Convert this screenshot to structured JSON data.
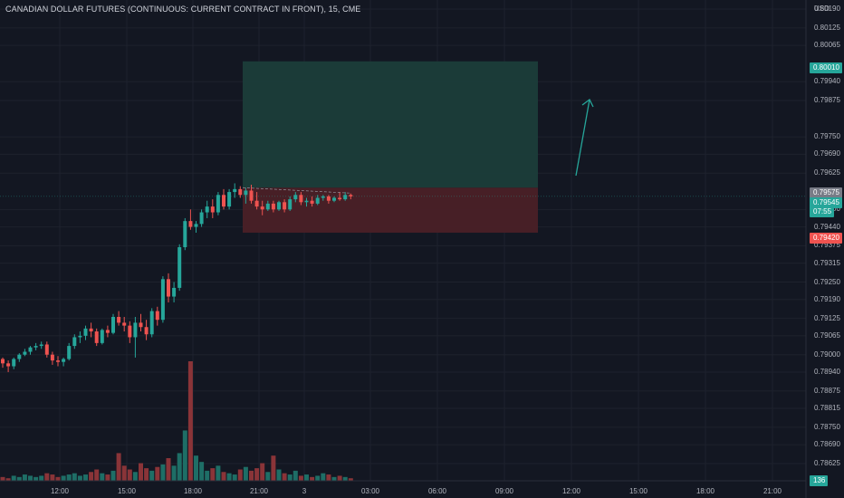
{
  "header": {
    "symbol_title": "CANADIAN DOLLAR FUTURES (CONTINUOUS: CURRENT CONTRACT IN FRONT), 15, CME"
  },
  "price_axis": {
    "currency": "USD",
    "ticks": [
      "0.80190",
      "0.80125",
      "0.80065",
      "0.79940",
      "0.79875",
      "0.79750",
      "0.79690",
      "0.79625",
      "0.79500",
      "0.79440",
      "0.79375",
      "0.79315",
      "0.79250",
      "0.79190",
      "0.79125",
      "0.79065",
      "0.79000",
      "0.78940",
      "0.78875",
      "0.78815",
      "0.78750",
      "0.78690",
      "0.78625"
    ],
    "tags": {
      "take_profit": "0.80010",
      "entry": "0.79575",
      "last_price": "0.79545",
      "countdown": "07:55",
      "stop_loss": "0.79420",
      "volume": "136"
    }
  },
  "time_axis": {
    "ticks": [
      "12:00",
      "15:00",
      "18:00",
      "21:00",
      "3",
      "03:00",
      "06:00",
      "09:00",
      "12:00",
      "15:00",
      "18:00",
      "21:00"
    ]
  },
  "colors": {
    "background": "#131722",
    "up": "#26a69a",
    "down": "#ef5350",
    "profit_zone": "#1b3d3a",
    "loss_zone": "#4a2027",
    "arrow": "#26a69a"
  },
  "chart_data": {
    "type": "candlestick",
    "y_range": [
      0.786,
      0.8019
    ],
    "candles": [
      [
        0.78985,
        0.7899,
        0.78955,
        0.7897
      ],
      [
        0.7897,
        0.7898,
        0.7894,
        0.7896
      ],
      [
        0.7896,
        0.7899,
        0.7895,
        0.78985
      ],
      [
        0.78985,
        0.79005,
        0.78975,
        0.79
      ],
      [
        0.79,
        0.7902,
        0.78995,
        0.7901
      ],
      [
        0.7901,
        0.7903,
        0.79,
        0.79025
      ],
      [
        0.79025,
        0.7904,
        0.79015,
        0.7903
      ],
      [
        0.7903,
        0.79045,
        0.7902,
        0.79035
      ],
      [
        0.79035,
        0.79045,
        0.7899,
        0.79
      ],
      [
        0.79,
        0.7901,
        0.78965,
        0.7898
      ],
      [
        0.7898,
        0.78995,
        0.7896,
        0.78975
      ],
      [
        0.78975,
        0.7899,
        0.7896,
        0.78985
      ],
      [
        0.78985,
        0.7904,
        0.7898,
        0.7903
      ],
      [
        0.7903,
        0.7907,
        0.7902,
        0.7906
      ],
      [
        0.7906,
        0.7908,
        0.7904,
        0.79065
      ],
      [
        0.79065,
        0.791,
        0.7905,
        0.7909
      ],
      [
        0.7909,
        0.7911,
        0.7906,
        0.7908
      ],
      [
        0.7908,
        0.7909,
        0.7903,
        0.7904
      ],
      [
        0.7904,
        0.7909,
        0.79035,
        0.79085
      ],
      [
        0.79085,
        0.791,
        0.7906,
        0.79075
      ],
      [
        0.79075,
        0.7914,
        0.7907,
        0.7913
      ],
      [
        0.7913,
        0.7915,
        0.791,
        0.7911
      ],
      [
        0.7911,
        0.7913,
        0.7908,
        0.791
      ],
      [
        0.791,
        0.79115,
        0.7904,
        0.7906
      ],
      [
        0.7906,
        0.7913,
        0.7899,
        0.7911
      ],
      [
        0.7911,
        0.7914,
        0.7908,
        0.79095
      ],
      [
        0.79095,
        0.7912,
        0.7905,
        0.7907
      ],
      [
        0.7907,
        0.7916,
        0.7906,
        0.7915
      ],
      [
        0.7915,
        0.79165,
        0.791,
        0.7912
      ],
      [
        0.7912,
        0.7927,
        0.7911,
        0.7926
      ],
      [
        0.7926,
        0.7928,
        0.7918,
        0.792
      ],
      [
        0.792,
        0.7925,
        0.7918,
        0.7923
      ],
      [
        0.7923,
        0.7938,
        0.7922,
        0.7937
      ],
      [
        0.7937,
        0.7947,
        0.7936,
        0.7946
      ],
      [
        0.7946,
        0.795,
        0.7943,
        0.7944
      ],
      [
        0.7944,
        0.7946,
        0.7942,
        0.7945
      ],
      [
        0.7945,
        0.795,
        0.7944,
        0.7949
      ],
      [
        0.7949,
        0.7953,
        0.7947,
        0.7951
      ],
      [
        0.7951,
        0.79535,
        0.7947,
        0.7949
      ],
      [
        0.7949,
        0.7956,
        0.7948,
        0.7955
      ],
      [
        0.7955,
        0.7957,
        0.795,
        0.7951
      ],
      [
        0.7951,
        0.7957,
        0.795,
        0.7956
      ],
      [
        0.7956,
        0.7959,
        0.7954,
        0.7957
      ],
      [
        0.7957,
        0.7958,
        0.7954,
        0.7955
      ],
      [
        0.7955,
        0.79575,
        0.7952,
        0.79565
      ],
      [
        0.79565,
        0.79585,
        0.7952,
        0.7953
      ],
      [
        0.7953,
        0.7956,
        0.795,
        0.7951
      ],
      [
        0.7951,
        0.7953,
        0.7948,
        0.795
      ],
      [
        0.795,
        0.7953,
        0.79495,
        0.7952
      ],
      [
        0.7952,
        0.7953,
        0.7949,
        0.795
      ],
      [
        0.795,
        0.7953,
        0.79495,
        0.79525
      ],
      [
        0.79525,
        0.79535,
        0.7949,
        0.795
      ],
      [
        0.795,
        0.79545,
        0.79495,
        0.79535
      ],
      [
        0.79535,
        0.7956,
        0.79525,
        0.7955
      ],
      [
        0.7955,
        0.7956,
        0.79515,
        0.79525
      ],
      [
        0.79525,
        0.7954,
        0.7951,
        0.7953
      ],
      [
        0.7953,
        0.79545,
        0.7951,
        0.7952
      ],
      [
        0.7952,
        0.7955,
        0.79515,
        0.7954
      ],
      [
        0.7954,
        0.7955,
        0.7953,
        0.79545
      ],
      [
        0.79545,
        0.7955,
        0.7952,
        0.7953
      ],
      [
        0.7953,
        0.79545,
        0.79525,
        0.7954
      ],
      [
        0.7954,
        0.7956,
        0.7953,
        0.79535
      ],
      [
        0.79535,
        0.7956,
        0.7953,
        0.7955
      ],
      [
        0.7955,
        0.79555,
        0.79535,
        0.79545
      ]
    ],
    "volume": [
      3,
      2,
      4,
      3,
      5,
      4,
      3,
      4,
      6,
      5,
      3,
      4,
      5,
      6,
      4,
      5,
      7,
      9,
      6,
      5,
      8,
      22,
      12,
      9,
      7,
      14,
      10,
      8,
      11,
      13,
      18,
      12,
      22,
      40,
      95,
      20,
      15,
      8,
      10,
      12,
      7,
      6,
      5,
      9,
      11,
      8,
      10,
      14,
      7,
      20,
      9,
      6,
      5,
      8,
      4,
      5,
      3,
      4,
      6,
      5,
      3,
      4,
      3,
      2
    ],
    "position": {
      "take_profit": 0.8001,
      "entry": 0.79575,
      "stop_loss": 0.7942
    }
  }
}
